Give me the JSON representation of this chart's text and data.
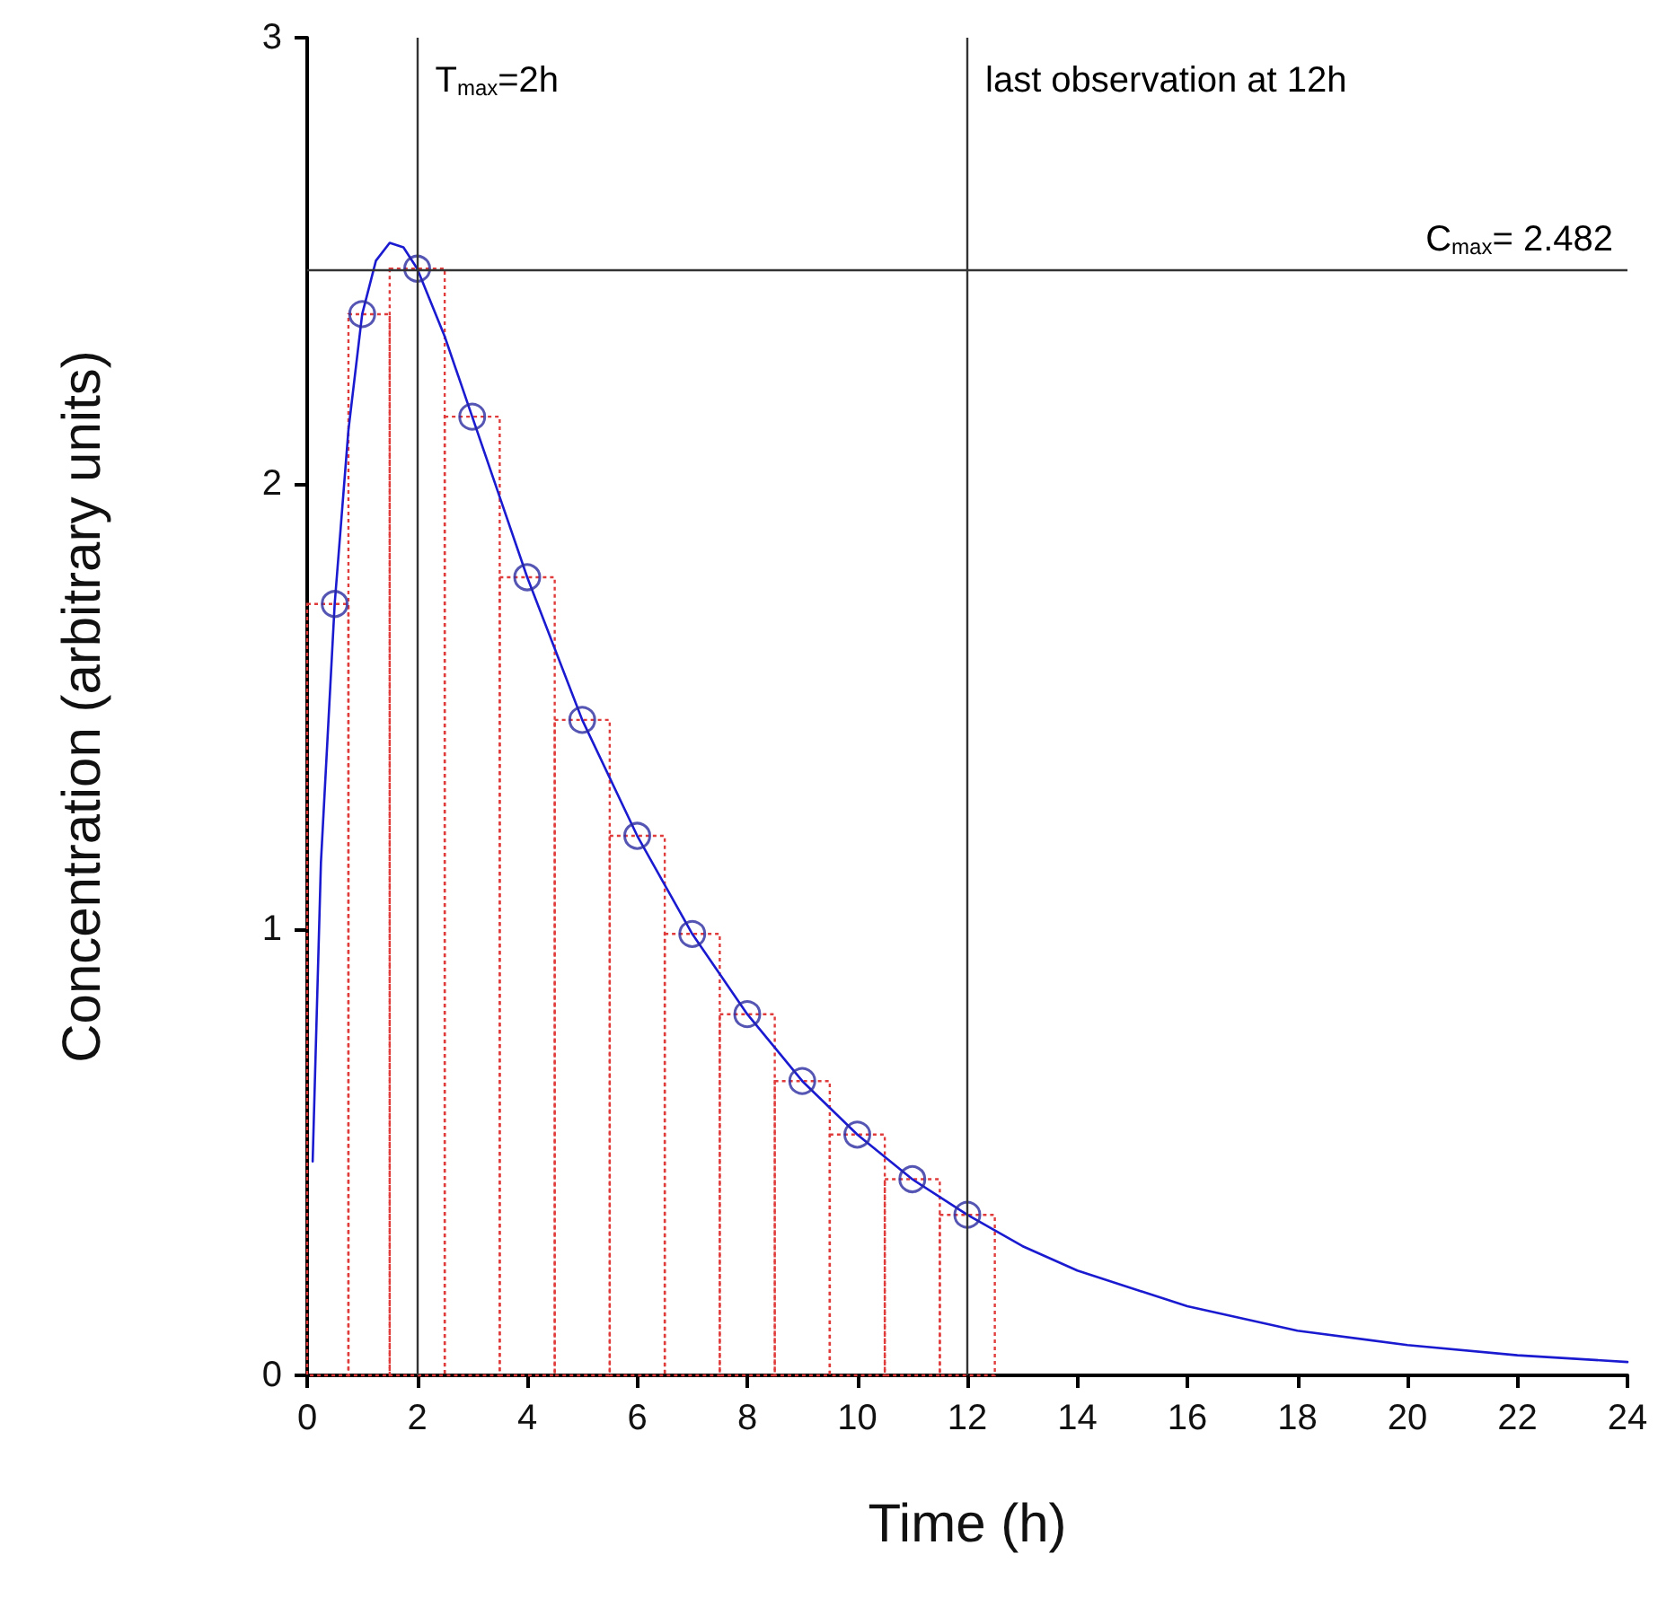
{
  "chart_data": {
    "type": "scatter",
    "xlabel": "Time (h)",
    "ylabel": "Concentration (arbitrary units)",
    "xlim": [
      0,
      24
    ],
    "xticks": [
      0,
      2,
      4,
      6,
      8,
      10,
      12,
      14,
      16,
      18,
      20,
      22,
      24
    ],
    "ylim": [
      0,
      3
    ],
    "yticks": [
      0,
      1,
      2,
      3
    ],
    "grid": false,
    "series": [
      {
        "type": "histogram",
        "color": "#e03c3c",
        "line_style": "dotted",
        "bins": [
          0,
          0.75,
          1.5,
          2.5,
          3.5,
          4.5,
          5.5,
          6.5,
          7.5,
          8.5,
          9.5,
          10.5,
          11.5,
          12.5
        ],
        "values": [
          1.73,
          2.38,
          2.482,
          2.15,
          1.79,
          1.47,
          1.21,
          0.99,
          0.81,
          0.66,
          0.54,
          0.44,
          0.36
        ]
      },
      {
        "type": "line",
        "color": "#1a1ad0",
        "marker": "none",
        "line_style": "solid",
        "x": [
          0.1,
          0.25,
          0.5,
          0.75,
          1,
          1.25,
          1.5,
          1.75,
          2,
          2.5,
          3,
          3.5,
          4,
          5,
          6,
          7,
          8,
          9,
          10,
          11,
          12,
          13,
          14,
          16,
          18,
          20,
          22,
          24
        ],
        "values": [
          0.48,
          1.15,
          1.73,
          2.12,
          2.38,
          2.5,
          2.54,
          2.53,
          2.482,
          2.33,
          2.15,
          1.97,
          1.79,
          1.47,
          1.21,
          0.99,
          0.81,
          0.66,
          0.54,
          0.44,
          0.36,
          0.29,
          0.235,
          0.155,
          0.1,
          0.068,
          0.045,
          0.03
        ]
      },
      {
        "color": "#2a2aa0",
        "marker": "circle",
        "x": [
          0.5,
          1,
          2,
          3,
          4,
          5,
          6,
          7,
          8,
          9,
          10,
          11,
          12
        ],
        "values": [
          1.73,
          2.38,
          2.482,
          2.15,
          1.79,
          1.47,
          1.21,
          0.99,
          0.81,
          0.66,
          0.54,
          0.44,
          0.36
        ]
      }
    ],
    "ref_lines": [
      {
        "axis": "x",
        "value": 2,
        "label": "T$_{max}$=2h",
        "color": "#333333"
      },
      {
        "axis": "x",
        "value": 12,
        "label": "last observation at 12h",
        "color": "#333333"
      },
      {
        "axis": "y",
        "value": 2.482,
        "label": "C$_{max}$= 2.482",
        "color": "#333333"
      }
    ]
  }
}
